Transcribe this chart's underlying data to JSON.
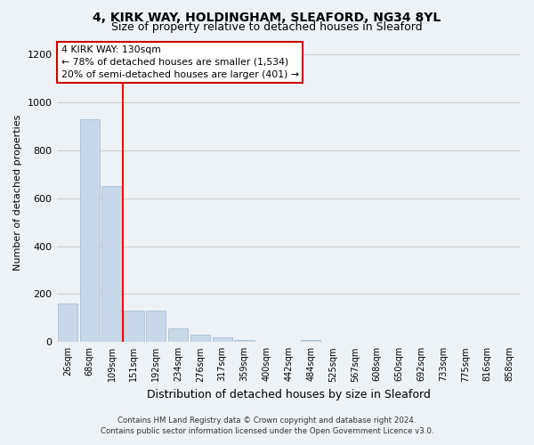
{
  "title": "4, KIRK WAY, HOLDINGHAM, SLEAFORD, NG34 8YL",
  "subtitle": "Size of property relative to detached houses in Sleaford",
  "xlabel": "Distribution of detached houses by size in Sleaford",
  "ylabel": "Number of detached properties",
  "footer_line1": "Contains HM Land Registry data © Crown copyright and database right 2024.",
  "footer_line2": "Contains public sector information licensed under the Open Government Licence v3.0.",
  "bar_labels": [
    "26sqm",
    "68sqm",
    "109sqm",
    "151sqm",
    "192sqm",
    "234sqm",
    "276sqm",
    "317sqm",
    "359sqm",
    "400sqm",
    "442sqm",
    "484sqm",
    "525sqm",
    "567sqm",
    "608sqm",
    "650sqm",
    "692sqm",
    "733sqm",
    "775sqm",
    "816sqm",
    "858sqm"
  ],
  "bar_values": [
    160,
    930,
    650,
    130,
    130,
    58,
    30,
    18,
    10,
    0,
    0,
    10,
    0,
    0,
    0,
    0,
    0,
    0,
    0,
    0,
    0
  ],
  "bar_color": "#c8d8e8",
  "bar_edgecolor": "#a0b8cc",
  "ylim": [
    0,
    1250
  ],
  "yticks": [
    0,
    200,
    400,
    600,
    800,
    1000,
    1200
  ],
  "annotation_title": "4 KIRK WAY: 130sqm",
  "annotation_line1": "← 78% of detached houses are smaller (1,534)",
  "annotation_line2": "20% of semi-detached houses are larger (401) →",
  "annotation_box_facecolor": "#ffffff",
  "annotation_box_edgecolor": "#cc0000",
  "grid_color": "#cccccc",
  "background_color": "#edf2f7",
  "title_fontsize": 10,
  "subtitle_fontsize": 9
}
